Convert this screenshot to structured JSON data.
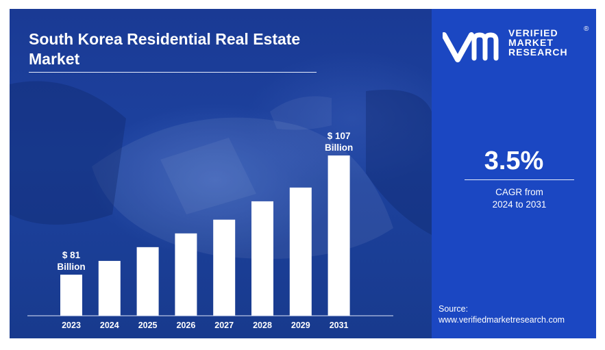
{
  "title": "South Korea Residential Real Estate Market",
  "logo": {
    "line1": "VERIFIED",
    "line2": "MARKET",
    "line3": "RESEARCH",
    "registered": "®"
  },
  "cagr": {
    "value": "3.5%",
    "label_line1": "CAGR from",
    "label_line2": "2024 to 2031"
  },
  "source": {
    "label": "Source:",
    "url": "www.verifiedmarketresearch.com"
  },
  "colors": {
    "left_background": "#1d3f9a",
    "right_background": "#1b47c2",
    "bars": "#ffffff",
    "text": "#ffffff"
  },
  "chart_data": {
    "type": "bar",
    "categories": [
      "2023",
      "2024",
      "2025",
      "2026",
      "2027",
      "2028",
      "2029",
      "2031"
    ],
    "values": [
      81,
      84,
      87,
      90,
      93,
      97,
      100,
      107
    ],
    "annotations": [
      {
        "category": "2023",
        "line1": "$ 81",
        "line2": "Billion"
      },
      {
        "category": "2031",
        "line1": "$ 107",
        "line2": "Billion"
      }
    ],
    "xlabel": "",
    "ylabel": "",
    "grid": false,
    "legend": "none"
  }
}
